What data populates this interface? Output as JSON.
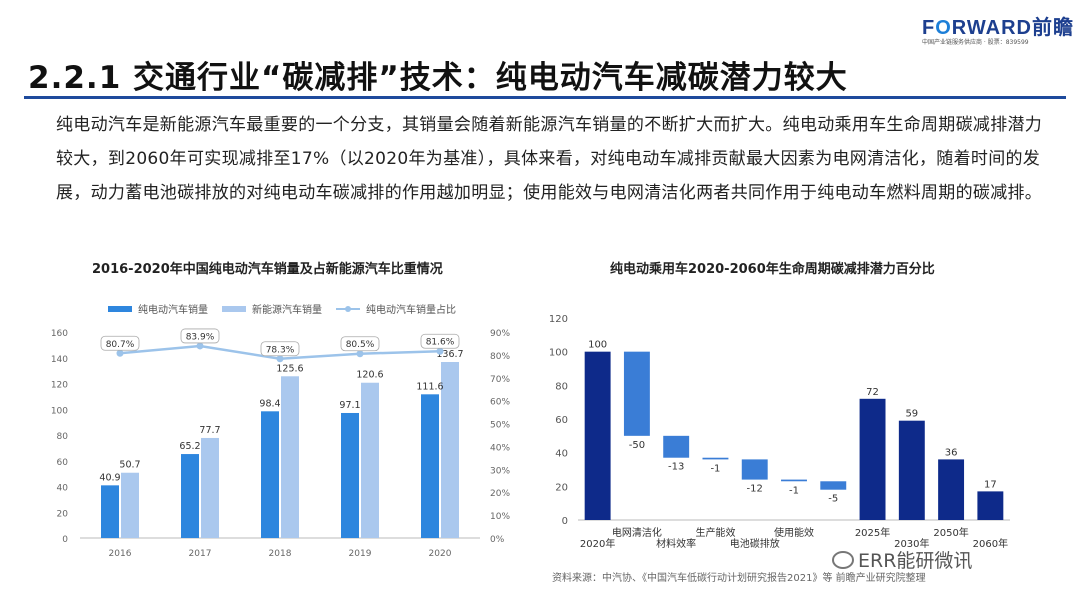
{
  "logo": {
    "brand_pre": "F",
    "brand_o": "O",
    "brand_post": "RWARD前瞻",
    "subtitle": "中国产业链服务供应商 · 股票：839599"
  },
  "title": "2.2.1 交通行业“碳减排”技术：纯电动汽车减碳潜力较大",
  "paragraph": "纯电动汽车是新能源汽车最重要的一个分支，其销量会随着新能源汽车销量的不断扩大而扩大。纯电动乘用车生命周期碳减排潜力较大，到2060年可实现减排至17%（以2020年为基准），具体来看，对纯电动车减排贡献最大因素为电网清洁化，随着时间的发展，动力蓄电池碳排放的对纯电动车碳减排的作用越加明显；使用能效与电网清洁化两者共同作用于纯电动车燃料周期的碳减排。",
  "chart1_title": "2016-2020年中国纯电动汽车销量及占新能源汽车比重情况",
  "chart2_title": "纯电动乘用车2020-2060年生命周期碳减排潜力百分比",
  "source": "资料来源：中汽协、《中国汽车低碳行动计划研究报告2021》等 前瞻产业研究院整理",
  "watermark": "ERR能研微讯",
  "colors": {
    "accent": "#1e4a9c",
    "bev": "#2e86de",
    "nev": "#aac8ee",
    "share": "#9cc3ea",
    "dark": "#0e2a8a",
    "step": "#3a7dd6"
  },
  "chart_data": [
    {
      "type": "bar",
      "title": "2016-2020年中国纯电动汽车销量及占新能源汽车比重情况",
      "categories": [
        "2016",
        "2017",
        "2018",
        "2019",
        "2020"
      ],
      "series": [
        {
          "name": "纯电动汽车销量",
          "type": "bar",
          "values": [
            40.9,
            65.2,
            98.4,
            97.1,
            111.6
          ]
        },
        {
          "name": "新能源汽车销量",
          "type": "bar",
          "values": [
            50.7,
            77.7,
            125.6,
            120.6,
            136.7
          ]
        },
        {
          "name": "纯电动汽车销量占比",
          "type": "line",
          "axis": "right",
          "values": [
            80.7,
            83.9,
            78.3,
            80.5,
            81.6
          ]
        }
      ],
      "left_ticks": [
        "0",
        "20",
        "40",
        "60",
        "80",
        "100",
        "120",
        "140",
        "160"
      ],
      "right_ticks": [
        "0%",
        "10%",
        "20%",
        "30%",
        "40%",
        "50%",
        "60%",
        "70%",
        "80%",
        "90%"
      ],
      "share_labels": [
        "80.7%",
        "83.9%",
        "78.3%",
        "80.5%",
        "81.6%"
      ],
      "bev_labels": [
        "40.9",
        "65.2",
        "98.4",
        "97.1",
        "111.6"
      ],
      "nev_labels": [
        "50.7",
        "77.7",
        "125.6",
        "120.6",
        "136.7"
      ],
      "ylim": [
        0,
        160
      ],
      "y2lim": [
        0,
        90
      ],
      "legend": "top"
    },
    {
      "type": "bar",
      "subtype": "waterfall",
      "title": "纯电动乘用车2020-2060年生命周期碳减排潜力百分比",
      "categories": [
        "2020年",
        "电网清洁化",
        "材料效率",
        "生产能效",
        "电池碳排放",
        "使用能效",
        "",
        "2025年",
        "2030年",
        "2050年",
        "2060年"
      ],
      "values": [
        100,
        -50,
        -13,
        -1,
        -12,
        -1,
        -5,
        72,
        59,
        36,
        17
      ],
      "value_labels": [
        "100",
        "-50",
        "-13",
        "-1",
        "-12",
        "-1",
        "-5",
        "72",
        "59",
        "36",
        "17"
      ],
      "kinds": [
        "total",
        "delta",
        "delta",
        "delta",
        "delta",
        "delta",
        "delta",
        "total",
        "total",
        "total",
        "total"
      ],
      "y_ticks": [
        "0",
        "20",
        "40",
        "60",
        "80",
        "100",
        "120"
      ],
      "ylim": [
        0,
        120
      ]
    }
  ]
}
